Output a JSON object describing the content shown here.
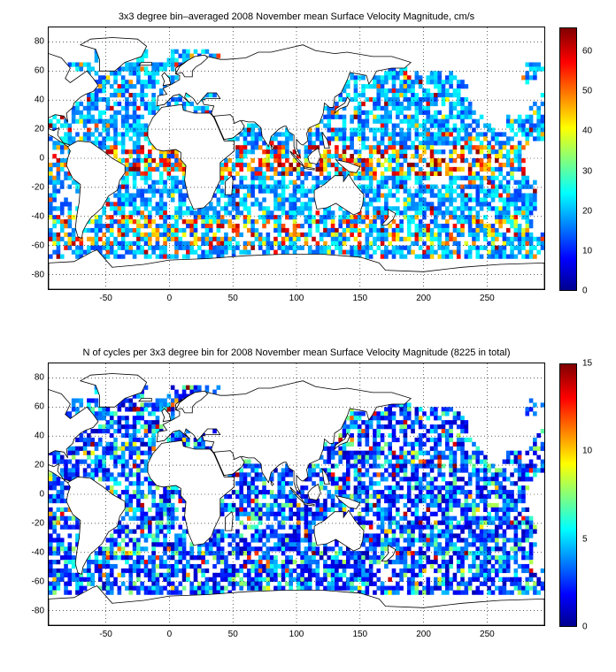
{
  "panels": [
    {
      "id": "speed",
      "title": "3x3 degree bin–averaged 2008 November mean Surface Velocity Magnitude, cm/s",
      "x_ticks": [
        "-50",
        "0",
        "50",
        "100",
        "150",
        "200",
        "250"
      ],
      "y_ticks": [
        "80",
        "60",
        "40",
        "20",
        "0",
        "-20",
        "-40",
        "-60",
        "-80"
      ],
      "colorbar": {
        "min": 0,
        "max": 66,
        "ticks": [
          "0",
          "10",
          "20",
          "30",
          "40",
          "50",
          "60"
        ]
      }
    },
    {
      "id": "cycles",
      "title": "N of cycles per 3x3 degree bin for 2008 November mean Surface Velocity Magnitude (8225 in total)",
      "x_ticks": [
        "-50",
        "0",
        "50",
        "100",
        "150",
        "200",
        "250"
      ],
      "y_ticks": [
        "80",
        "60",
        "40",
        "20",
        "0",
        "-20",
        "-40",
        "-60",
        "-80"
      ],
      "colorbar": {
        "min": 0,
        "max": 15,
        "ticks": [
          "0",
          "5",
          "10",
          "15"
        ]
      }
    }
  ],
  "map": {
    "lon_range": [
      -95,
      295
    ],
    "lat_range": [
      -90,
      90
    ],
    "grid": true,
    "colormap": "jet"
  }
}
